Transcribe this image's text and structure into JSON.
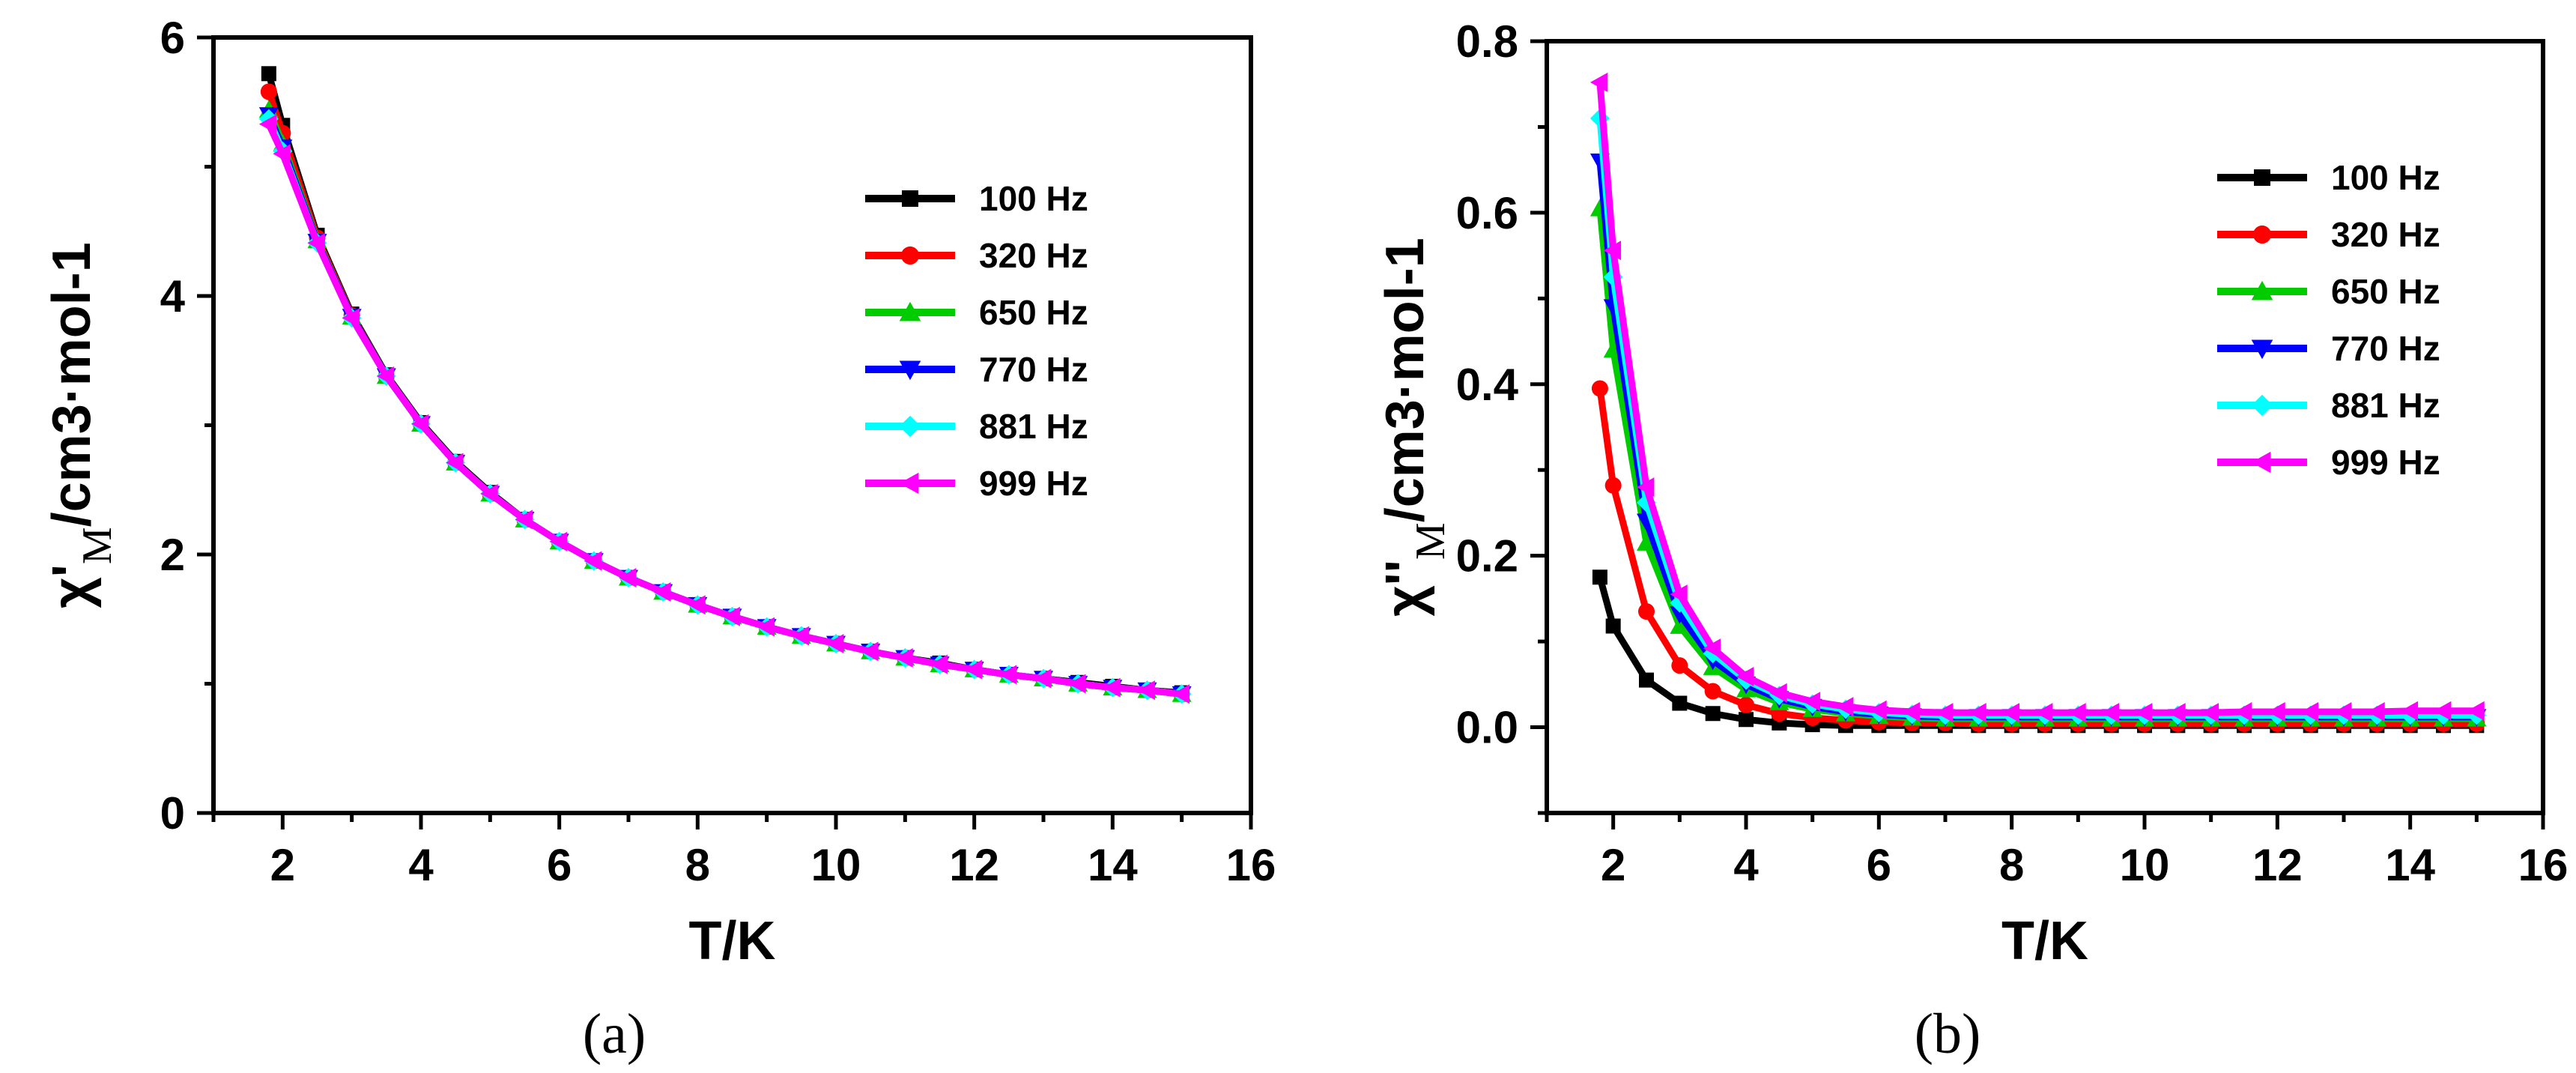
{
  "chart_data": [
    {
      "type": "line",
      "panel_label": "(a)",
      "xlabel": "T/K",
      "ylabel": {
        "prefix": "χ'",
        "sub": "M",
        "suffix": "/cm3·mol-1"
      },
      "xlim": [
        1,
        16
      ],
      "ylim": [
        0,
        6
      ],
      "xticks": [
        2,
        4,
        6,
        8,
        10,
        12,
        14,
        16
      ],
      "yticks": [
        0,
        2,
        4,
        6
      ],
      "legend_position": "top-right",
      "x": [
        1.8,
        2.0,
        2.5,
        3.0,
        3.5,
        4.0,
        4.5,
        5.0,
        5.5,
        6.0,
        6.5,
        7.0,
        7.5,
        8.0,
        8.5,
        9.0,
        9.5,
        10.0,
        10.5,
        11.0,
        11.5,
        12.0,
        12.5,
        13.0,
        13.5,
        14.0,
        14.5,
        15.0
      ],
      "series": [
        {
          "name": "100 Hz",
          "color": "#000000",
          "marker": "square",
          "values": [
            5.72,
            5.32,
            4.47,
            3.86,
            3.39,
            3.02,
            2.72,
            2.48,
            2.27,
            2.1,
            1.95,
            1.82,
            1.71,
            1.61,
            1.52,
            1.44,
            1.37,
            1.31,
            1.25,
            1.2,
            1.16,
            1.11,
            1.07,
            1.04,
            1.01,
            0.98,
            0.95,
            0.93
          ]
        },
        {
          "name": "320 Hz",
          "color": "#ff0000",
          "marker": "circle",
          "values": [
            5.58,
            5.26,
            4.45,
            3.85,
            3.38,
            3.01,
            2.71,
            2.47,
            2.27,
            2.1,
            1.95,
            1.82,
            1.71,
            1.61,
            1.52,
            1.44,
            1.37,
            1.31,
            1.25,
            1.2,
            1.15,
            1.11,
            1.07,
            1.04,
            1.0,
            0.97,
            0.95,
            0.92
          ]
        },
        {
          "name": "650 Hz",
          "color": "#00cc00",
          "marker": "triangle-up",
          "values": [
            5.44,
            5.18,
            4.43,
            3.84,
            3.38,
            3.01,
            2.71,
            2.47,
            2.27,
            2.1,
            1.95,
            1.82,
            1.71,
            1.61,
            1.52,
            1.44,
            1.37,
            1.31,
            1.25,
            1.2,
            1.15,
            1.11,
            1.07,
            1.04,
            1.0,
            0.97,
            0.95,
            0.92
          ]
        },
        {
          "name": "770 Hz",
          "color": "#0000ff",
          "marker": "triangle-down",
          "values": [
            5.4,
            5.15,
            4.42,
            3.84,
            3.38,
            3.01,
            2.71,
            2.47,
            2.27,
            2.1,
            1.95,
            1.82,
            1.71,
            1.61,
            1.52,
            1.44,
            1.37,
            1.31,
            1.25,
            1.2,
            1.15,
            1.11,
            1.07,
            1.04,
            1.0,
            0.97,
            0.95,
            0.92
          ]
        },
        {
          "name": "881 Hz",
          "color": "#00ffff",
          "marker": "diamond",
          "values": [
            5.37,
            5.12,
            4.41,
            3.83,
            3.38,
            3.01,
            2.71,
            2.47,
            2.27,
            2.1,
            1.95,
            1.82,
            1.71,
            1.61,
            1.52,
            1.44,
            1.37,
            1.31,
            1.25,
            1.2,
            1.15,
            1.11,
            1.07,
            1.04,
            1.0,
            0.97,
            0.95,
            0.92
          ]
        },
        {
          "name": "999 Hz",
          "color": "#ff00ff",
          "marker": "triangle-left",
          "values": [
            5.33,
            5.1,
            4.41,
            3.83,
            3.38,
            3.01,
            2.71,
            2.47,
            2.27,
            2.1,
            1.95,
            1.82,
            1.71,
            1.61,
            1.52,
            1.44,
            1.37,
            1.31,
            1.25,
            1.2,
            1.15,
            1.11,
            1.07,
            1.04,
            1.0,
            0.97,
            0.95,
            0.92
          ]
        }
      ]
    },
    {
      "type": "line",
      "panel_label": "(b)",
      "xlabel": "T/K",
      "ylabel": {
        "prefix": "χ''",
        "sub": "M",
        "suffix": "/cm3·mol-1"
      },
      "xlim": [
        1,
        16
      ],
      "ylim": [
        -0.1,
        0.8
      ],
      "xticks": [
        2,
        4,
        6,
        8,
        10,
        12,
        14,
        16
      ],
      "yticks": [
        0.0,
        0.2,
        0.4,
        0.6,
        0.8
      ],
      "ytick_labels": [
        "0.0",
        "0.2",
        "0.4",
        "0.6",
        "0.8"
      ],
      "legend_position": "top-right",
      "x": [
        1.8,
        2.0,
        2.5,
        3.0,
        3.5,
        4.0,
        4.5,
        5.0,
        5.5,
        6.0,
        6.5,
        7.0,
        7.5,
        8.0,
        8.5,
        9.0,
        9.5,
        10.0,
        10.5,
        11.0,
        11.5,
        12.0,
        12.5,
        13.0,
        13.5,
        14.0,
        14.5,
        15.0
      ],
      "series": [
        {
          "name": "100 Hz",
          "color": "#000000",
          "marker": "square",
          "values": [
            0.175,
            0.118,
            0.055,
            0.028,
            0.016,
            0.009,
            0.005,
            0.003,
            0.002,
            0.002,
            0.002,
            0.002,
            0.002,
            0.002,
            0.002,
            0.002,
            0.002,
            0.002,
            0.002,
            0.002,
            0.002,
            0.002,
            0.002,
            0.002,
            0.002,
            0.002,
            0.002,
            0.002
          ]
        },
        {
          "name": "320 Hz",
          "color": "#ff0000",
          "marker": "circle",
          "values": [
            0.395,
            0.282,
            0.135,
            0.072,
            0.042,
            0.026,
            0.016,
            0.011,
            0.008,
            0.006,
            0.005,
            0.005,
            0.004,
            0.004,
            0.004,
            0.004,
            0.004,
            0.004,
            0.004,
            0.004,
            0.004,
            0.004,
            0.004,
            0.004,
            0.004,
            0.004,
            0.004,
            0.004
          ]
        },
        {
          "name": "650 Hz",
          "color": "#00cc00",
          "marker": "triangle-up",
          "values": [
            0.605,
            0.44,
            0.215,
            0.118,
            0.07,
            0.044,
            0.029,
            0.021,
            0.016,
            0.013,
            0.011,
            0.01,
            0.01,
            0.01,
            0.01,
            0.01,
            0.01,
            0.01,
            0.01,
            0.01,
            0.01,
            0.01,
            0.01,
            0.01,
            0.01,
            0.01,
            0.01,
            0.01
          ]
        },
        {
          "name": "770 Hz",
          "color": "#0000ff",
          "marker": "triangle-down",
          "values": [
            0.66,
            0.49,
            0.24,
            0.132,
            0.078,
            0.05,
            0.033,
            0.024,
            0.018,
            0.015,
            0.013,
            0.012,
            0.012,
            0.012,
            0.012,
            0.012,
            0.012,
            0.012,
            0.012,
            0.012,
            0.012,
            0.012,
            0.012,
            0.012,
            0.012,
            0.012,
            0.012,
            0.012
          ]
        },
        {
          "name": "881 Hz",
          "color": "#00ffff",
          "marker": "diamond",
          "values": [
            0.71,
            0.525,
            0.262,
            0.145,
            0.086,
            0.055,
            0.037,
            0.027,
            0.021,
            0.017,
            0.015,
            0.014,
            0.014,
            0.014,
            0.014,
            0.014,
            0.014,
            0.014,
            0.014,
            0.014,
            0.014,
            0.014,
            0.014,
            0.014,
            0.014,
            0.014,
            0.014,
            0.014
          ]
        },
        {
          "name": "999 Hz",
          "color": "#ff00ff",
          "marker": "triangle-left",
          "values": [
            0.752,
            0.556,
            0.28,
            0.155,
            0.092,
            0.059,
            0.04,
            0.03,
            0.024,
            0.02,
            0.018,
            0.017,
            0.017,
            0.017,
            0.017,
            0.017,
            0.017,
            0.017,
            0.017,
            0.017,
            0.018,
            0.018,
            0.018,
            0.018,
            0.018,
            0.019,
            0.019,
            0.019
          ]
        }
      ]
    }
  ]
}
